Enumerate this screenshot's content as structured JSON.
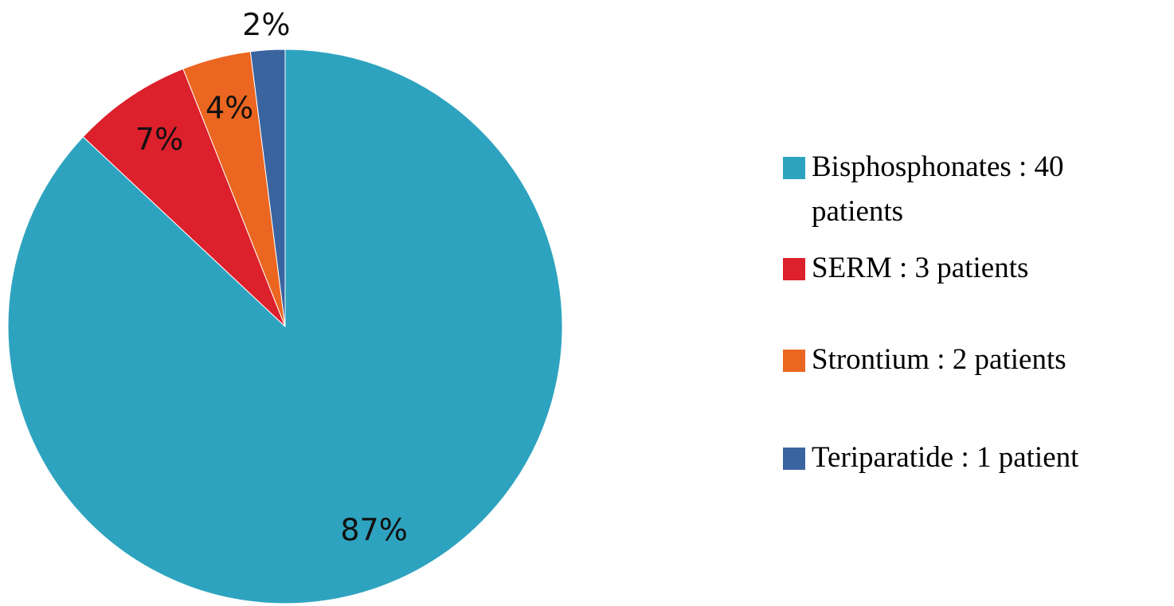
{
  "chart_data": {
    "type": "pie",
    "categories": [
      "Bisphosphonates : 40 patients",
      "SERM : 3 patients",
      "Strontium : 2 patients",
      "Teriparatide : 1 patient"
    ],
    "values": [
      87,
      7,
      4,
      2
    ],
    "value_labels": [
      "87%",
      "7%",
      "4%",
      "2%"
    ],
    "colors": [
      "#2ea3bf",
      "#dc202c",
      "#eb6620",
      "#3a64a0"
    ],
    "legend": "right"
  }
}
